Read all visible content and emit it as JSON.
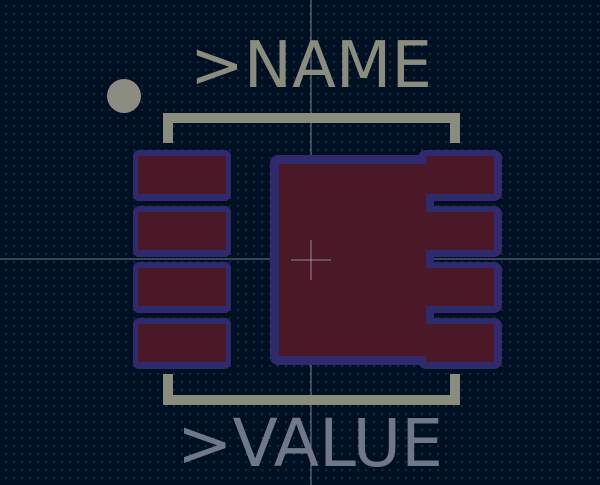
{
  "footprint": {
    "name_text": ">NAME",
    "value_text": ">VALUE"
  },
  "colors": {
    "background": "#001023",
    "grid_dot": "#6e82a0",
    "silkscreen": "#8a8d7e",
    "silkscreen_dot": "#8c8c82",
    "pad_fill": "#4a1826",
    "pad_outline": "#2f2a6e",
    "crosshair": "#c8d0dc",
    "value_text": "#6e7888"
  },
  "icons": {
    "pin1_marker": "pin-one-dot-icon",
    "origin": "origin-crosshair-icon"
  }
}
